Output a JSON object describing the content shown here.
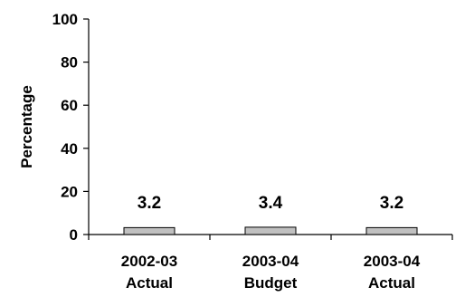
{
  "chart_data": {
    "type": "bar",
    "categories": [
      [
        "2002-03",
        "Actual"
      ],
      [
        "2003-04",
        "Budget"
      ],
      [
        "2003-04",
        "Actual"
      ]
    ],
    "values": [
      3.2,
      3.4,
      3.2
    ],
    "data_labels": [
      "3.2",
      "3.4",
      "3.2"
    ],
    "ylabel": "Percentage",
    "ylim": [
      0,
      100
    ],
    "yticks": [
      "0",
      "20",
      "40",
      "60",
      "80",
      "100"
    ],
    "grid": false,
    "legend": "none",
    "bar_color": "#c0c0c0",
    "bar_edge_color": "#000000"
  }
}
